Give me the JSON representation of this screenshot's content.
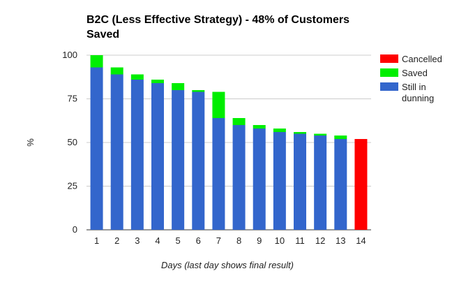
{
  "chart_data": {
    "type": "bar",
    "stacked": true,
    "title": "B2C (Less Effective Strategy) - 48% of Customers Saved",
    "xlabel": "Days (last day shows final result)",
    "ylabel": "%",
    "ylim": [
      0,
      100
    ],
    "yticks": [
      0,
      25,
      50,
      75,
      100
    ],
    "grid": true,
    "legend_position": "right",
    "categories": [
      "1",
      "2",
      "3",
      "4",
      "5",
      "6",
      "7",
      "8",
      "9",
      "10",
      "11",
      "12",
      "13",
      "14"
    ],
    "series": [
      {
        "name": "Still in dunning",
        "color": "#3366cc",
        "values": [
          93,
          89,
          86,
          84,
          80,
          79,
          64,
          60,
          58,
          56,
          55,
          54,
          52,
          0
        ]
      },
      {
        "name": "Saved",
        "color": "#00ee00",
        "values": [
          7,
          4,
          3,
          2,
          4,
          1,
          15,
          4,
          2,
          2,
          1,
          1,
          2,
          0
        ]
      },
      {
        "name": "Cancelled",
        "color": "#ff0000",
        "values": [
          0,
          0,
          0,
          0,
          0,
          0,
          0,
          0,
          0,
          0,
          0,
          0,
          0,
          52
        ]
      }
    ],
    "legend_order": [
      "Cancelled",
      "Saved",
      "Still in dunning"
    ]
  }
}
